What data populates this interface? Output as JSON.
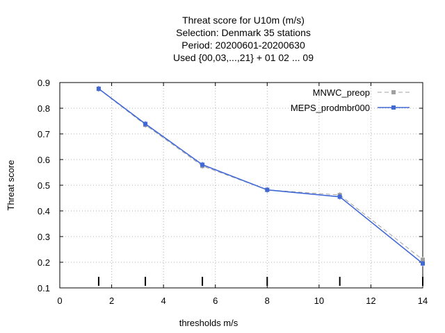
{
  "chart_data": {
    "type": "line",
    "title_lines": [
      "Threat score  for U10m (m/s)",
      "Selection: Denmark     35 stations",
      "Period: 20200601-20200630",
      "Used {00,03,...,21} + 01 02 ... 09"
    ],
    "xlabel": "thresholds m/s",
    "ylabel": "Threat score",
    "xlim": [
      0,
      14
    ],
    "ylim": [
      0.1,
      0.9
    ],
    "x_ticks": [
      "0",
      "2",
      "4",
      "6",
      "8",
      "10",
      "12",
      "14"
    ],
    "y_ticks": [
      "0.1",
      "0.2",
      "0.3",
      "0.4",
      "0.5",
      "0.6",
      "0.7",
      "0.8",
      "0.9"
    ],
    "legend_position": "top-right",
    "threshold_marks": [
      1.5,
      3.3,
      5.5,
      8.0,
      10.8,
      14.0
    ],
    "series": [
      {
        "name": "MNWC_preop",
        "color": "#a0a0a0",
        "style": "dashed",
        "x": [
          1.5,
          3.3,
          5.5,
          8.0,
          10.8,
          14.0
        ],
        "y": [
          0.875,
          0.735,
          0.575,
          0.482,
          0.462,
          0.21
        ]
      },
      {
        "name": "MEPS_prodmbr000",
        "color": "#4169d6",
        "style": "solid",
        "x": [
          1.5,
          3.3,
          5.5,
          8.0,
          10.8,
          14.0
        ],
        "y": [
          0.876,
          0.739,
          0.58,
          0.482,
          0.455,
          0.195
        ]
      }
    ]
  }
}
